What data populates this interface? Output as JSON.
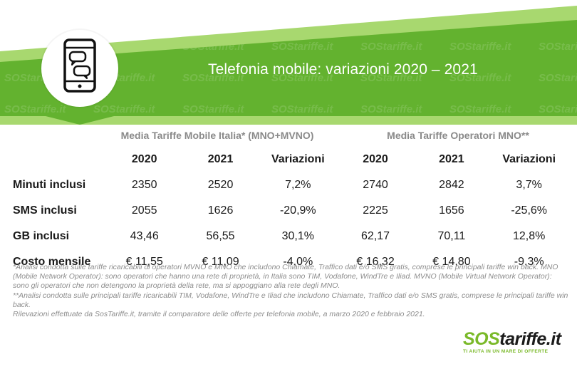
{
  "banner": {
    "title": "Telefonia mobile: variazioni 2020 – 2021",
    "icon": "smartphone-chat-icon",
    "colors": {
      "green": "#63b22f",
      "light_green": "#a8d86f"
    }
  },
  "chart_data": {
    "type": "table",
    "groups": [
      {
        "title": "Media Tariffe Mobile Italia* (MNO+MVNO)",
        "columns": [
          "2020",
          "2021",
          "Variazioni"
        ]
      },
      {
        "title": "Media Tariffe Operatori MNO**",
        "columns": [
          "2020",
          "2021",
          "Variazioni"
        ]
      }
    ],
    "rows": [
      {
        "label": "Minuti inclusi",
        "values": [
          "2350",
          "2520",
          "7,2%",
          "2740",
          "2842",
          "3,7%"
        ]
      },
      {
        "label": "SMS inclusi",
        "values": [
          "2055",
          "1626",
          "-20,9%",
          "2225",
          "1656",
          "-25,6%"
        ]
      },
      {
        "label": "GB inclusi",
        "values": [
          "43,46",
          "56,55",
          "30,1%",
          "62,17",
          "70,11",
          "12,8%"
        ]
      },
      {
        "label": "Costo mensile",
        "values": [
          "€ 11,55",
          "€ 11,09",
          "-4,0%",
          "€ 16,32",
          "€ 14,80",
          "-9,3%"
        ]
      }
    ]
  },
  "notes": [
    "*Analisi condotta sulle tariffe ricaricabili di operatori MVNO e MNO che includono Chiamate, Traffico dati e/o SMS gratis, comprese le principali tariffe win back. MNO (Mobile Network Operator): sono operatori che hanno una rete di proprietà, in Italia sono TIM, Vodafone, WindTre e Iliad. MVNO (Mobile Virtual Network Operator): sono gli operatori che non detengono la proprietà della rete, ma si appoggiano alla rete degli MNO.",
    "**Analisi condotta sulle principali tariffe ricaricabili TIM, Vodafone, WindTre e Iliad che includono Chiamate, Traffico dati e/o SMS gratis, comprese le principali tariffe win back.",
    "Rilevazioni effettuate da SosTariffe.it, tramite il comparatore delle offerte per telefonia mobile, a marzo 2020 e febbraio 2021."
  ],
  "logo": {
    "sos": "SOS",
    "rest": "tariffe.it",
    "tagline": "TI AIUTA IN UN MARE DI OFFERTE",
    "watermark": "SOStariffe.it"
  }
}
